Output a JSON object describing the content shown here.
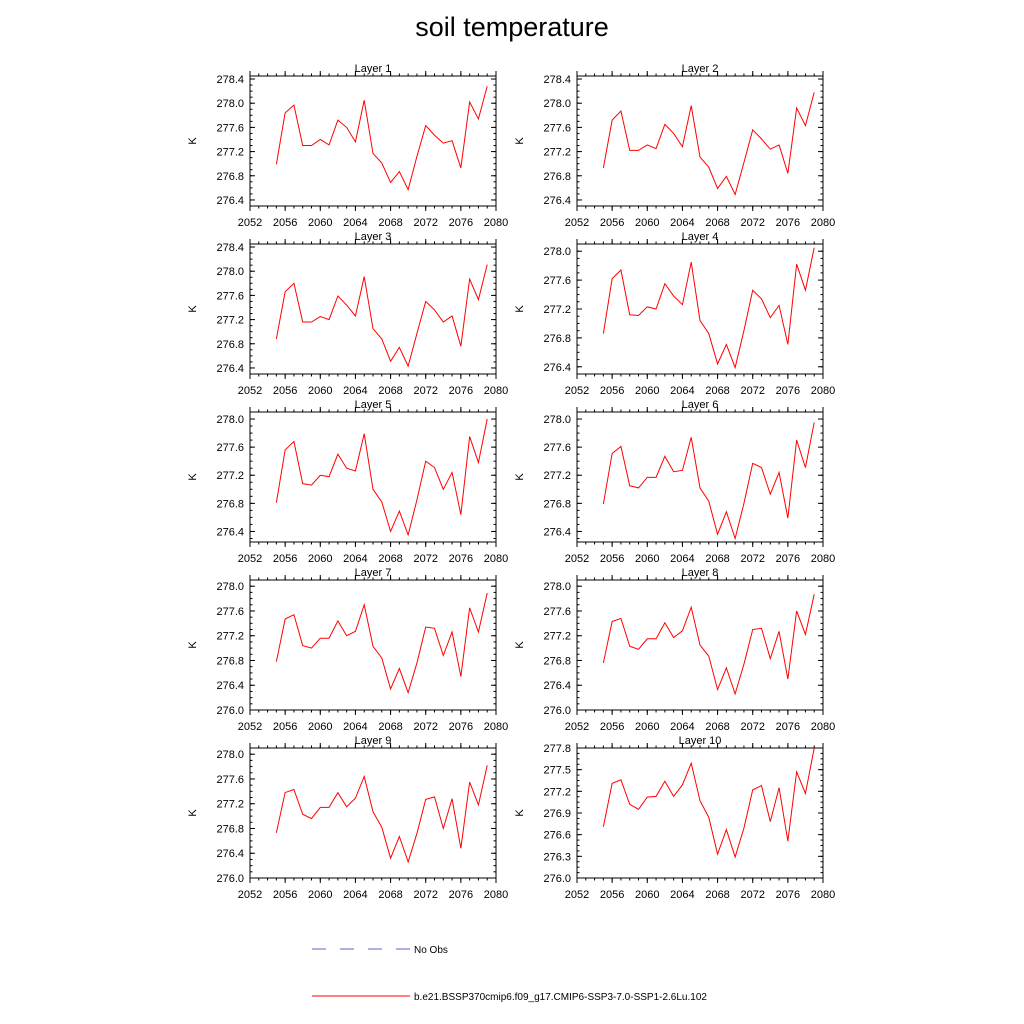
{
  "title": "soil temperature",
  "colors": {
    "model_line": "#ff0000",
    "obs_line": "#5566cc",
    "axis": "#000000",
    "background": "#ffffff"
  },
  "legend": {
    "obs_label": "No Obs",
    "model_label": "b.e21.BSSP370cmip6.f09_g17.CMIP6-SSP3-7.0-SSP1-2.6Lu.102"
  },
  "chart_data": [
    {
      "type": "line",
      "title": "Layer 1",
      "xlabel": "",
      "ylabel": "K",
      "xlim": [
        2052,
        2080
      ],
      "ylim": [
        276.3,
        278.45
      ],
      "xticks": [
        2052,
        2056,
        2060,
        2064,
        2068,
        2072,
        2076,
        2080
      ],
      "xtick_labels": [
        "2052",
        "2056",
        "2060",
        "2064",
        "2068",
        "2072",
        "2076",
        "2080"
      ],
      "yticks": [
        276.4,
        276.8,
        277.2,
        277.6,
        278.0,
        278.4
      ],
      "ytick_labels": [
        "276.4",
        "276.8",
        "277.2",
        "277.6",
        "278.0",
        "278.4"
      ],
      "x": [
        2055,
        2056,
        2057,
        2058,
        2059,
        2060,
        2061,
        2062,
        2063,
        2064,
        2065,
        2066,
        2067,
        2068,
        2069,
        2070,
        2071,
        2072,
        2073,
        2074,
        2075,
        2076,
        2077,
        2078,
        2079
      ],
      "series": [
        {
          "values": [
            276.99,
            277.84,
            277.97,
            277.3,
            277.3,
            277.4,
            277.31,
            277.72,
            277.6,
            277.36,
            278.05,
            277.17,
            277.01,
            276.69,
            276.87,
            276.57,
            277.12,
            277.63,
            277.47,
            277.34,
            277.38,
            276.93,
            278.02,
            277.74,
            278.28
          ]
        }
      ]
    },
    {
      "type": "line",
      "title": "Layer 2",
      "xlabel": "",
      "ylabel": "K",
      "xlim": [
        2052,
        2080
      ],
      "ylim": [
        276.3,
        278.45
      ],
      "xticks": [
        2052,
        2056,
        2060,
        2064,
        2068,
        2072,
        2076,
        2080
      ],
      "xtick_labels": [
        "2052",
        "2056",
        "2060",
        "2064",
        "2068",
        "2072",
        "2076",
        "2080"
      ],
      "yticks": [
        276.4,
        276.8,
        277.2,
        277.6,
        278.0,
        278.4
      ],
      "ytick_labels": [
        "276.4",
        "276.8",
        "277.2",
        "277.6",
        "278.0",
        "278.4"
      ],
      "x": [
        2055,
        2056,
        2057,
        2058,
        2059,
        2060,
        2061,
        2062,
        2063,
        2064,
        2065,
        2066,
        2067,
        2068,
        2069,
        2070,
        2071,
        2072,
        2073,
        2074,
        2075,
        2076,
        2077,
        2078,
        2079
      ],
      "series": [
        {
          "values": [
            276.93,
            277.72,
            277.87,
            277.22,
            277.22,
            277.31,
            277.25,
            277.65,
            277.5,
            277.28,
            277.96,
            277.11,
            276.94,
            276.59,
            276.79,
            276.49,
            277.02,
            277.56,
            277.41,
            277.24,
            277.31,
            276.84,
            277.92,
            277.63,
            278.18
          ]
        }
      ]
    },
    {
      "type": "line",
      "title": "Layer 3",
      "xlabel": "",
      "ylabel": "K",
      "xlim": [
        2052,
        2080
      ],
      "ylim": [
        276.3,
        278.45
      ],
      "xticks": [
        2052,
        2056,
        2060,
        2064,
        2068,
        2072,
        2076,
        2080
      ],
      "xtick_labels": [
        "2052",
        "2056",
        "2060",
        "2064",
        "2068",
        "2072",
        "2076",
        "2080"
      ],
      "yticks": [
        276.4,
        276.8,
        277.2,
        277.6,
        278.0,
        278.4
      ],
      "ytick_labels": [
        "276.4",
        "276.8",
        "277.2",
        "277.6",
        "278.0",
        "278.4"
      ],
      "x": [
        2055,
        2056,
        2057,
        2058,
        2059,
        2060,
        2061,
        2062,
        2063,
        2064,
        2065,
        2066,
        2067,
        2068,
        2069,
        2070,
        2071,
        2072,
        2073,
        2074,
        2075,
        2076,
        2077,
        2078,
        2079
      ],
      "series": [
        {
          "values": [
            276.88,
            277.66,
            277.8,
            277.16,
            277.16,
            277.25,
            277.2,
            277.59,
            277.44,
            277.26,
            277.91,
            277.05,
            276.88,
            276.51,
            276.74,
            276.43,
            276.97,
            277.5,
            277.36,
            277.16,
            277.26,
            276.76,
            277.87,
            277.53,
            278.11
          ]
        }
      ]
    },
    {
      "type": "line",
      "title": "Layer 4",
      "xlabel": "",
      "ylabel": "K",
      "xlim": [
        2052,
        2080
      ],
      "ylim": [
        276.3,
        278.1
      ],
      "xticks": [
        2052,
        2056,
        2060,
        2064,
        2068,
        2072,
        2076,
        2080
      ],
      "xtick_labels": [
        "2052",
        "2056",
        "2060",
        "2064",
        "2068",
        "2072",
        "2076",
        "2080"
      ],
      "yticks": [
        276.4,
        276.8,
        277.2,
        277.6,
        278.0
      ],
      "ytick_labels": [
        "276.4",
        "276.8",
        "277.2",
        "277.6",
        "278.0"
      ],
      "x": [
        2055,
        2056,
        2057,
        2058,
        2059,
        2060,
        2061,
        2062,
        2063,
        2064,
        2065,
        2066,
        2067,
        2068,
        2069,
        2070,
        2071,
        2072,
        2073,
        2074,
        2075,
        2076,
        2077,
        2078,
        2079
      ],
      "series": [
        {
          "values": [
            276.86,
            277.62,
            277.74,
            277.12,
            277.11,
            277.23,
            277.2,
            277.55,
            277.38,
            277.26,
            277.85,
            277.04,
            276.86,
            276.44,
            276.71,
            276.39,
            276.9,
            277.46,
            277.34,
            277.08,
            277.25,
            276.71,
            277.82,
            277.46,
            278.05
          ]
        }
      ]
    },
    {
      "type": "line",
      "title": "Layer 5",
      "xlabel": "",
      "ylabel": "K",
      "xlim": [
        2052,
        2080
      ],
      "ylim": [
        276.25,
        278.1
      ],
      "xticks": [
        2052,
        2056,
        2060,
        2064,
        2068,
        2072,
        2076,
        2080
      ],
      "xtick_labels": [
        "2052",
        "2056",
        "2060",
        "2064",
        "2068",
        "2072",
        "2076",
        "2080"
      ],
      "yticks": [
        276.4,
        276.8,
        277.2,
        277.6,
        278.0
      ],
      "ytick_labels": [
        "276.4",
        "276.8",
        "277.2",
        "277.6",
        "278.0"
      ],
      "x": [
        2055,
        2056,
        2057,
        2058,
        2059,
        2060,
        2061,
        2062,
        2063,
        2064,
        2065,
        2066,
        2067,
        2068,
        2069,
        2070,
        2071,
        2072,
        2073,
        2074,
        2075,
        2076,
        2077,
        2078,
        2079
      ],
      "series": [
        {
          "values": [
            276.81,
            277.56,
            277.68,
            277.08,
            277.06,
            277.2,
            277.18,
            277.5,
            277.3,
            277.26,
            277.79,
            277.0,
            276.82,
            276.4,
            276.69,
            276.35,
            276.85,
            277.4,
            277.31,
            277.0,
            277.24,
            276.64,
            277.75,
            277.38,
            278.0
          ]
        }
      ]
    },
    {
      "type": "line",
      "title": "Layer 6",
      "xlabel": "",
      "ylabel": "K",
      "xlim": [
        2052,
        2080
      ],
      "ylim": [
        276.25,
        278.1
      ],
      "xticks": [
        2052,
        2056,
        2060,
        2064,
        2068,
        2072,
        2076,
        2080
      ],
      "xtick_labels": [
        "2052",
        "2056",
        "2060",
        "2064",
        "2068",
        "2072",
        "2076",
        "2080"
      ],
      "yticks": [
        276.4,
        276.8,
        277.2,
        277.6,
        278.0
      ],
      "ytick_labels": [
        "276.4",
        "276.8",
        "277.2",
        "277.6",
        "278.0"
      ],
      "x": [
        2055,
        2056,
        2057,
        2058,
        2059,
        2060,
        2061,
        2062,
        2063,
        2064,
        2065,
        2066,
        2067,
        2068,
        2069,
        2070,
        2071,
        2072,
        2073,
        2074,
        2075,
        2076,
        2077,
        2078,
        2079
      ],
      "series": [
        {
          "values": [
            276.79,
            277.51,
            277.61,
            277.05,
            277.02,
            277.17,
            277.17,
            277.47,
            277.25,
            277.27,
            277.74,
            277.02,
            276.83,
            276.36,
            276.68,
            276.3,
            276.8,
            277.37,
            277.31,
            276.93,
            277.24,
            276.59,
            277.7,
            277.31,
            277.95
          ]
        }
      ]
    },
    {
      "type": "line",
      "title": "Layer 7",
      "xlabel": "",
      "ylabel": "K",
      "xlim": [
        2052,
        2080
      ],
      "ylim": [
        276.0,
        278.1
      ],
      "xticks": [
        2052,
        2056,
        2060,
        2064,
        2068,
        2072,
        2076,
        2080
      ],
      "xtick_labels": [
        "2052",
        "2056",
        "2060",
        "2064",
        "2068",
        "2072",
        "2076",
        "2080"
      ],
      "yticks": [
        276.0,
        276.4,
        276.8,
        277.2,
        277.6,
        278.0
      ],
      "ytick_labels": [
        "276.0",
        "276.4",
        "276.8",
        "277.2",
        "277.6",
        "278.0"
      ],
      "x": [
        2055,
        2056,
        2057,
        2058,
        2059,
        2060,
        2061,
        2062,
        2063,
        2064,
        2065,
        2066,
        2067,
        2068,
        2069,
        2070,
        2071,
        2072,
        2073,
        2074,
        2075,
        2076,
        2077,
        2078,
        2079
      ],
      "series": [
        {
          "values": [
            276.78,
            277.47,
            277.54,
            277.04,
            277.0,
            277.16,
            277.16,
            277.44,
            277.2,
            277.27,
            277.7,
            277.03,
            276.84,
            276.34,
            276.67,
            276.28,
            276.76,
            277.34,
            277.32,
            276.88,
            277.26,
            276.54,
            277.65,
            277.26,
            277.89
          ]
        }
      ]
    },
    {
      "type": "line",
      "title": "Layer 8",
      "xlabel": "",
      "ylabel": "K",
      "xlim": [
        2052,
        2080
      ],
      "ylim": [
        276.0,
        278.1
      ],
      "xticks": [
        2052,
        2056,
        2060,
        2064,
        2068,
        2072,
        2076,
        2080
      ],
      "xtick_labels": [
        "2052",
        "2056",
        "2060",
        "2064",
        "2068",
        "2072",
        "2076",
        "2080"
      ],
      "yticks": [
        276.0,
        276.4,
        276.8,
        277.2,
        277.6,
        278.0
      ],
      "ytick_labels": [
        "276.0",
        "276.4",
        "276.8",
        "277.2",
        "277.6",
        "278.0"
      ],
      "x": [
        2055,
        2056,
        2057,
        2058,
        2059,
        2060,
        2061,
        2062,
        2063,
        2064,
        2065,
        2066,
        2067,
        2068,
        2069,
        2070,
        2071,
        2072,
        2073,
        2074,
        2075,
        2076,
        2077,
        2078,
        2079
      ],
      "series": [
        {
          "values": [
            276.76,
            277.43,
            277.48,
            277.03,
            276.98,
            277.15,
            277.15,
            277.41,
            277.17,
            277.28,
            277.66,
            277.05,
            276.87,
            276.33,
            276.68,
            276.26,
            276.74,
            277.3,
            277.32,
            276.83,
            277.27,
            276.5,
            277.6,
            277.22,
            277.87
          ]
        }
      ]
    },
    {
      "type": "line",
      "title": "Layer 9",
      "xlabel": "",
      "ylabel": "K",
      "xlim": [
        2052,
        2080
      ],
      "ylim": [
        276.0,
        278.1
      ],
      "xticks": [
        2052,
        2056,
        2060,
        2064,
        2068,
        2072,
        2076,
        2080
      ],
      "xtick_labels": [
        "2052",
        "2056",
        "2060",
        "2064",
        "2068",
        "2072",
        "2076",
        "2080"
      ],
      "yticks": [
        276.0,
        276.4,
        276.8,
        277.2,
        277.6,
        278.0
      ],
      "ytick_labels": [
        "276.0",
        "276.4",
        "276.8",
        "277.2",
        "277.6",
        "278.0"
      ],
      "x": [
        2055,
        2056,
        2057,
        2058,
        2059,
        2060,
        2061,
        2062,
        2063,
        2064,
        2065,
        2066,
        2067,
        2068,
        2069,
        2070,
        2071,
        2072,
        2073,
        2074,
        2075,
        2076,
        2077,
        2078,
        2079
      ],
      "series": [
        {
          "values": [
            276.73,
            277.38,
            277.43,
            277.03,
            276.96,
            277.14,
            277.14,
            277.38,
            277.15,
            277.29,
            277.64,
            277.07,
            276.82,
            276.32,
            276.67,
            276.26,
            276.72,
            277.27,
            277.31,
            276.8,
            277.28,
            276.48,
            277.55,
            277.18,
            277.82
          ]
        }
      ]
    },
    {
      "type": "line",
      "title": "Layer 10",
      "xlabel": "",
      "ylabel": "K",
      "xlim": [
        2052,
        2080
      ],
      "ylim": [
        276.0,
        277.8
      ],
      "xticks": [
        2052,
        2056,
        2060,
        2064,
        2068,
        2072,
        2076,
        2080
      ],
      "xtick_labels": [
        "2052",
        "2056",
        "2060",
        "2064",
        "2068",
        "2072",
        "2076",
        "2080"
      ],
      "yticks": [
        276.0,
        276.3,
        276.6,
        276.9,
        277.2,
        277.5,
        277.8
      ],
      "ytick_labels": [
        "276.0",
        "276.3",
        "276.6",
        "276.9",
        "277.2",
        "277.5",
        "277.8"
      ],
      "x": [
        2055,
        2056,
        2057,
        2058,
        2059,
        2060,
        2061,
        2062,
        2063,
        2064,
        2065,
        2066,
        2067,
        2068,
        2069,
        2070,
        2071,
        2072,
        2073,
        2074,
        2075,
        2076,
        2077,
        2078,
        2079
      ],
      "series": [
        {
          "values": [
            276.71,
            277.31,
            277.36,
            277.02,
            276.95,
            277.12,
            277.13,
            277.34,
            277.13,
            277.29,
            277.59,
            277.07,
            276.84,
            276.33,
            276.67,
            276.29,
            276.69,
            277.22,
            277.28,
            276.78,
            277.25,
            276.51,
            277.47,
            277.17,
            277.8
          ]
        }
      ]
    }
  ]
}
